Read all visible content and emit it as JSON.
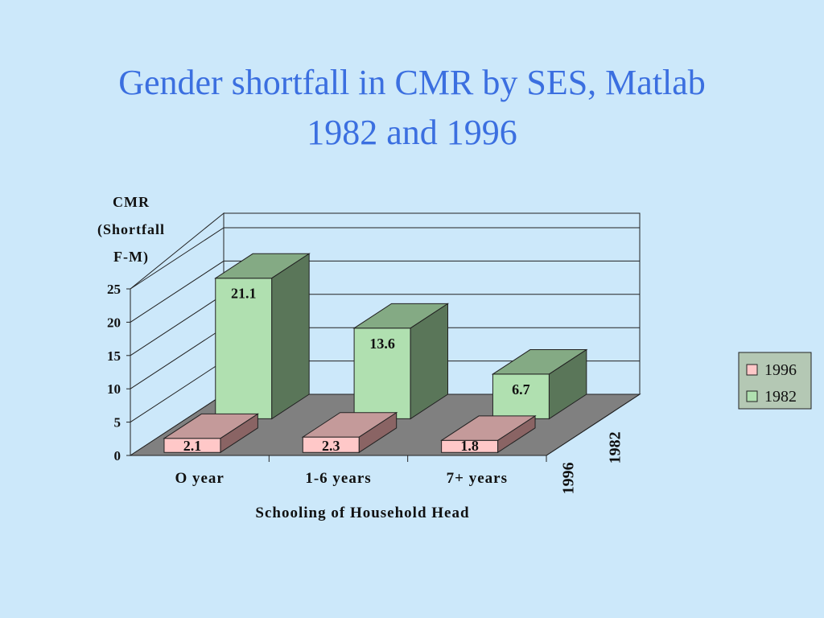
{
  "title_lines": [
    "Gender shortfall in CMR by SES, Matlab",
    "1982 and 1996"
  ],
  "colors": {
    "background": "#cce8fa",
    "title": "#3b6fe0",
    "series_1982_front": "#b0e0b0",
    "series_1982_top": "#84aa84",
    "series_1982_side": "#5a7659",
    "series_1996_front": "#ffc8c8",
    "series_1996_top": "#c49a9a",
    "series_1996_side": "#8a6464",
    "floor": "#808080",
    "legend_bg": "#b4c8b4"
  },
  "chart_data": {
    "type": "bar",
    "style": "3d-clustered-depth",
    "title": "Gender shortfall in CMR by SES, Matlab 1982 and 1996",
    "ylabel_lines": [
      "CMR",
      "(Shortfall",
      "F-M)"
    ],
    "xlabel": "Schooling of Household Head",
    "categories": [
      "O year",
      "1-6 years",
      "7+ years"
    ],
    "series": [
      {
        "name": "1996",
        "values": [
          2.1,
          2.3,
          1.8
        ]
      },
      {
        "name": "1982",
        "values": [
          21.1,
          13.6,
          6.7
        ]
      }
    ],
    "data_labels": {
      "1996": [
        "2.1",
        "2.3",
        "1.8"
      ],
      "1982": [
        "21.1",
        "13.6",
        "6.7"
      ]
    },
    "ylim": [
      0,
      25
    ],
    "yticks": [
      0,
      5,
      10,
      15,
      20,
      25
    ],
    "depth_labels": [
      "1996",
      "1982"
    ],
    "legend": {
      "position": "right",
      "entries": [
        "1996",
        "1982"
      ]
    },
    "grid": true
  }
}
